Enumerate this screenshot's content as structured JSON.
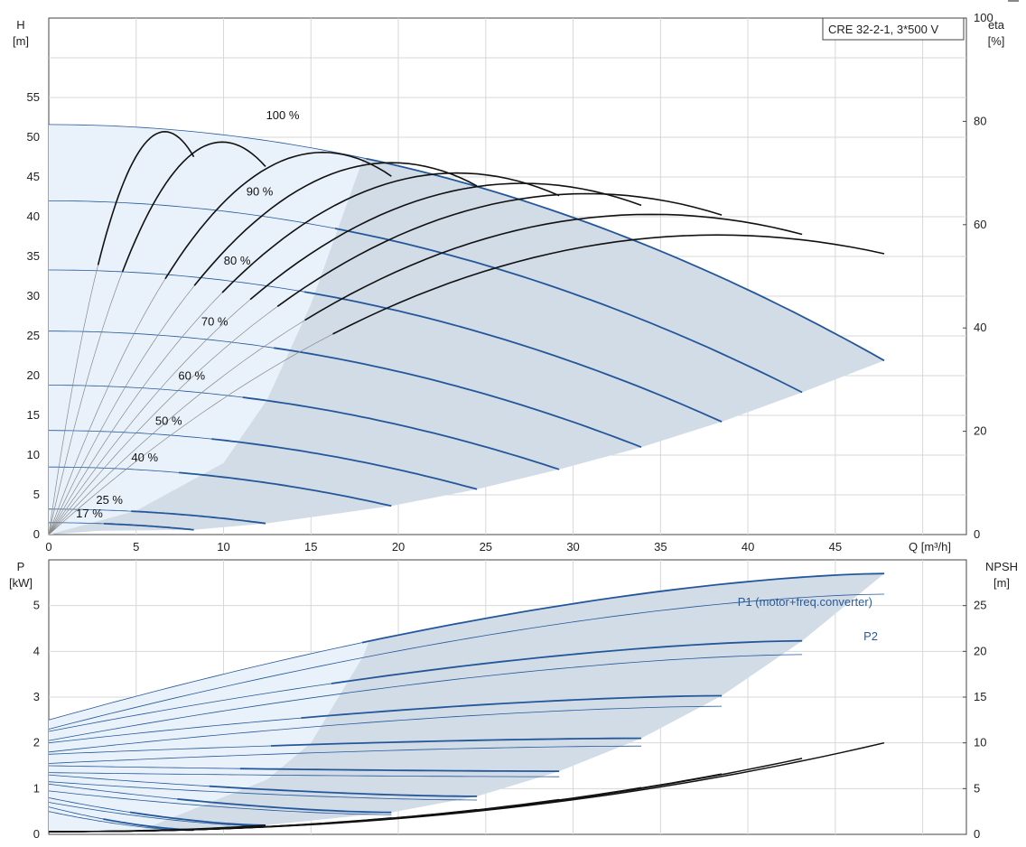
{
  "colors": {
    "envelope": "#d2dce7",
    "extended": "#e9f2fb",
    "curve": "#24579a",
    "eta": "#111111",
    "grid": "#d7d7d7"
  },
  "chart_data": [
    {
      "type": "line",
      "legend_box": "CRE 32-2-1, 3*500 V",
      "xlabel": "Q [m³/h]",
      "ylabel_left": [
        "H",
        "[m]"
      ],
      "ylabel_right": [
        "eta",
        "[%]"
      ],
      "xlim": [
        0,
        52.5
      ],
      "ylim_left": [
        0,
        65
      ],
      "ylim_right": [
        0,
        100
      ],
      "x_ticks": [
        "0",
        "5",
        "10",
        "15",
        "20",
        "25",
        "30",
        "35",
        "40",
        "45"
      ],
      "y_ticks_left": [
        "0",
        "5",
        "10",
        "15",
        "20",
        "25",
        "30",
        "35",
        "40",
        "45",
        "50",
        "55"
      ],
      "y_ticks_right": [
        "0",
        "20",
        "40",
        "60",
        "80",
        "100"
      ],
      "grid": true,
      "head_curves": [
        {
          "name": "100 %",
          "speed": 1.0,
          "H0": 51.6,
          "q_max": 47.8,
          "h_end": 21.9
        },
        {
          "name": "90 %",
          "speed": 0.9,
          "H0": 42.0,
          "q_max": 43.1,
          "h_end": 17.9
        },
        {
          "name": "80 %",
          "speed": 0.8,
          "H0": 33.3,
          "q_max": 38.5,
          "h_end": 14.2
        },
        {
          "name": "70 %",
          "speed": 0.7,
          "H0": 25.6,
          "q_max": 33.9,
          "h_end": 11.0
        },
        {
          "name": "60 %",
          "speed": 0.6,
          "H0": 18.8,
          "q_max": 29.2,
          "h_end": 8.2
        },
        {
          "name": "50 %",
          "speed": 0.5,
          "H0": 13.1,
          "q_max": 24.5,
          "h_end": 5.7
        },
        {
          "name": "40 %",
          "speed": 0.4,
          "H0": 8.5,
          "q_max": 19.6,
          "h_end": 3.6
        },
        {
          "name": "25 %",
          "speed": 0.25,
          "H0": 3.2,
          "q_max": 12.4,
          "h_end": 1.4
        },
        {
          "name": "17 %",
          "speed": 0.17,
          "H0": 1.5,
          "q_max": 8.3,
          "h_end": 0.6
        }
      ],
      "envelope_left_x": [
        0,
        5,
        10,
        12.5,
        15,
        18
      ],
      "eta_end_percent": [
        50,
        54,
        58,
        60,
        62,
        64,
        66,
        68,
        70
      ]
    },
    {
      "type": "line",
      "xlabel": "",
      "ylabel_left": [
        "P",
        "[kW]"
      ],
      "ylabel_right": [
        "NPSH",
        "[m]"
      ],
      "xlim": [
        0,
        52.5
      ],
      "ylim_left": [
        0,
        6
      ],
      "ylim_right": [
        0,
        30
      ],
      "y_ticks_left": [
        "0",
        "1",
        "2",
        "3",
        "4",
        "5"
      ],
      "y_ticks_right": [
        "0",
        "5",
        "10",
        "15",
        "20",
        "25"
      ],
      "grid": true,
      "series": [
        {
          "name": "P1 (motor+freq.converter)",
          "p_start": [
            2.5,
            2.25,
            2.0,
            1.75,
            1.5,
            1.3,
            1.1,
            0.8,
            0.6
          ],
          "p_end": [
            5.7,
            4.23,
            3.03,
            2.1,
            1.38,
            0.83,
            0.48,
            0.2,
            0.1
          ]
        },
        {
          "name": "P2",
          "p_start": [
            2.3,
            2.05,
            1.8,
            1.55,
            1.35,
            1.15,
            0.95,
            0.7,
            0.5
          ],
          "p_end": [
            5.25,
            3.93,
            2.8,
            1.93,
            1.26,
            0.75,
            0.43,
            0.18,
            0.08
          ]
        }
      ],
      "npsh_end": [
        10,
        8.3,
        6.6,
        5.1,
        3.8,
        2.7,
        1.8,
        1.0,
        0.5
      ]
    }
  ]
}
